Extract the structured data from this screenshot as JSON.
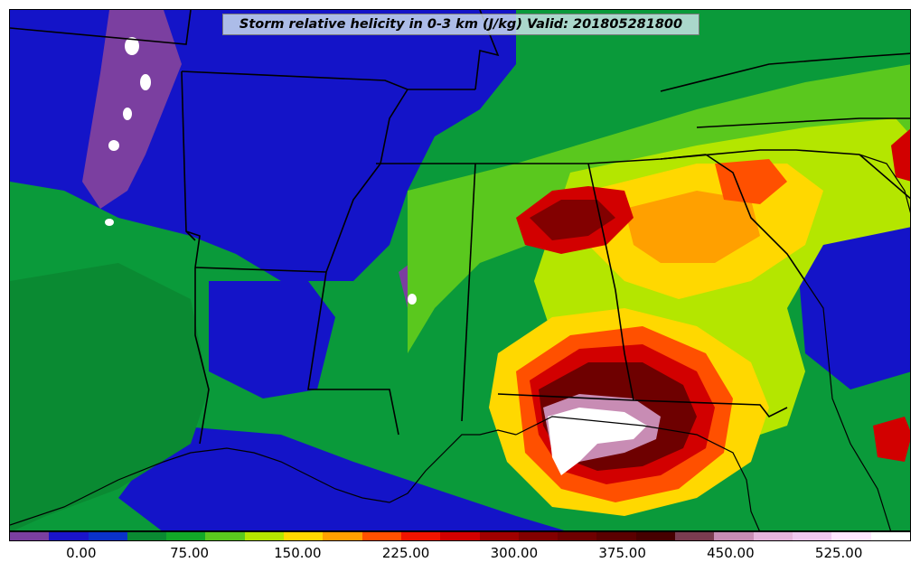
{
  "title": "Storm relative helicity in 0-3 km (J/kg) Valid: 201805281800",
  "colorbar": {
    "colors": [
      "#7b3fa0",
      "#1a14c8",
      "#0a32c8",
      "#0a8a32",
      "#12a828",
      "#5ac81e",
      "#b4e600",
      "#ffd800",
      "#ffa000",
      "#ff5000",
      "#f01400",
      "#d20000",
      "#a00000",
      "#820000",
      "#6e0000",
      "#5a0000",
      "#460000",
      "#7a3c50",
      "#c88cb4",
      "#e6b4dc",
      "#f0c8f0",
      "#ffe6ff",
      "#ffffff"
    ],
    "tick_labels": [
      "0.00",
      "75.00",
      "150.00",
      "225.00",
      "300.00",
      "375.00",
      "450.00",
      "525.00"
    ],
    "tick_values": [
      0,
      75,
      150,
      225,
      300,
      375,
      450,
      525
    ],
    "range": [
      -50,
      575
    ]
  }
}
